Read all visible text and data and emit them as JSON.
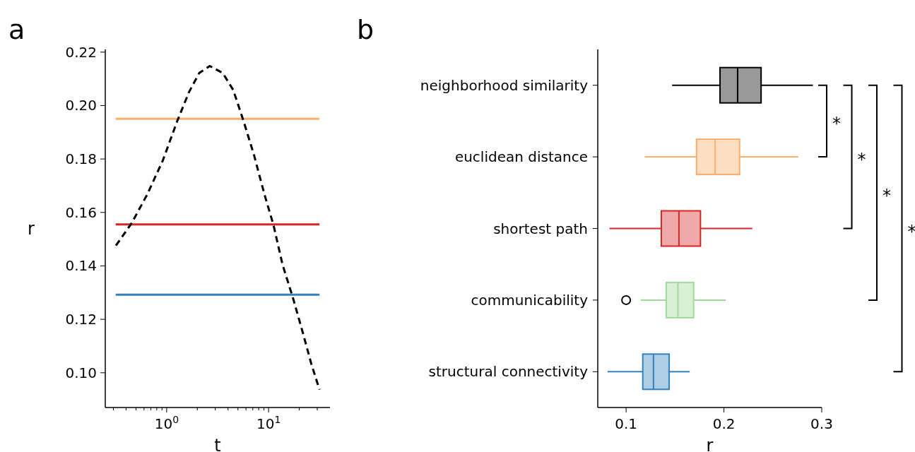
{
  "chart_data": [
    {
      "type": "line",
      "title": "a",
      "xlabel": "t",
      "ylabel": "r",
      "log": "x",
      "xlim": [
        0.25,
        40
      ],
      "ylim": [
        0.087,
        0.221
      ],
      "xticks": [
        {
          "value": 0.3,
          "label": null
        },
        {
          "value": 0.4,
          "label": null
        },
        {
          "value": 0.5,
          "label": null
        },
        {
          "value": 0.6,
          "label": null
        },
        {
          "value": 0.7,
          "label": null
        },
        {
          "value": 0.8,
          "label": null
        },
        {
          "value": 0.9,
          "label": null
        },
        {
          "value": 1,
          "label": "10$^{0}$"
        },
        {
          "value": 2,
          "label": null
        },
        {
          "value": 3,
          "label": null
        },
        {
          "value": 4,
          "label": null
        },
        {
          "value": 5,
          "label": null
        },
        {
          "value": 6,
          "label": null
        },
        {
          "value": 7,
          "label": null
        },
        {
          "value": 8,
          "label": null
        },
        {
          "value": 9,
          "label": null
        },
        {
          "value": 10,
          "label": "10$^{1}$"
        },
        {
          "value": 20,
          "label": null
        },
        {
          "value": 30,
          "label": null
        }
      ],
      "yticks": [
        {
          "value": 0.1,
          "label": "0.10"
        },
        {
          "value": 0.12,
          "label": "0.12"
        },
        {
          "value": 0.14,
          "label": "0.14"
        },
        {
          "value": 0.16,
          "label": "0.16"
        },
        {
          "value": 0.18,
          "label": "0.18"
        },
        {
          "value": 0.2,
          "label": "0.20"
        },
        {
          "value": 0.22,
          "label": "0.22"
        }
      ],
      "series": [
        {
          "color": "#fdae6b",
          "line_style": "solid",
          "x": [
            0.316,
            31.6
          ],
          "values": [
            0.195,
            0.195
          ]
        },
        {
          "color": "#d62728",
          "line_style": "solid",
          "x": [
            0.316,
            31.6
          ],
          "values": [
            0.1555,
            0.1555
          ]
        },
        {
          "color": "#3182bd",
          "line_style": "solid",
          "x": [
            0.316,
            31.6
          ],
          "values": [
            0.1292,
            0.1292
          ]
        },
        {
          "color": "#000000",
          "line_style": "dashed",
          "x": [
            0.318,
            0.454,
            0.646,
            0.918,
            1.27,
            1.65,
            2.09,
            2.65,
            3.55,
            4.49,
            5.68,
            7.19,
            9.1,
            11.2,
            13.7,
            17.4,
            22,
            26.2,
            31.6
          ],
          "values": [
            0.1476,
            0.156,
            0.1668,
            0.1795,
            0.1942,
            0.2049,
            0.2122,
            0.2148,
            0.2122,
            0.2059,
            0.1942,
            0.1815,
            0.1668,
            0.1551,
            0.1405,
            0.1278,
            0.1141,
            0.1034,
            0.0937
          ]
        }
      ]
    },
    {
      "type": "box",
      "title": "b",
      "xlabel": "r",
      "orientation": "horizontal",
      "categories": [
        "neighborhood similarity",
        "euclidean distance",
        "shortest path",
        "communicability",
        "structural connectivity"
      ],
      "colors": [
        "#000000",
        "#fdae6b",
        "#d62728",
        "#a1d99b",
        "#3182bd"
      ],
      "xlim": [
        0.071,
        0.3
      ],
      "xticks": [
        0.1,
        0.2,
        0.3
      ],
      "boxes": [
        {
          "low": 0.147,
          "q1": 0.196,
          "median": 0.214,
          "q3": 0.238,
          "high": 0.291
        },
        {
          "low": 0.119,
          "q1": 0.172,
          "median": 0.191,
          "q3": 0.216,
          "high": 0.276
        },
        {
          "low": 0.083,
          "q1": 0.136,
          "median": 0.154,
          "q3": 0.176,
          "high": 0.229
        },
        {
          "low": 0.115,
          "q1": 0.141,
          "median": 0.153,
          "q3": 0.169,
          "high": 0.202,
          "outliers": [
            0.1
          ]
        },
        {
          "low": 0.081,
          "q1": 0.117,
          "median": 0.128,
          "q3": 0.144,
          "high": 0.165
        }
      ],
      "annotations": [
        "*",
        "*",
        "*",
        "*"
      ]
    }
  ]
}
